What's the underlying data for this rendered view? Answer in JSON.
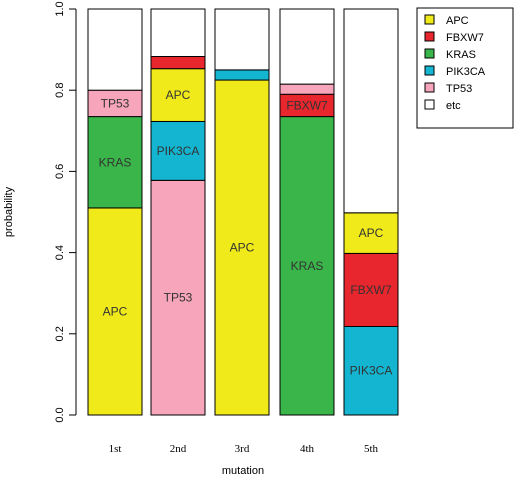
{
  "chart_data": {
    "type": "bar",
    "stacked": true,
    "xlabel": "mutation",
    "ylabel": "probability",
    "ylim": [
      0,
      1
    ],
    "yticks": [
      "0.0",
      "0.2",
      "0.4",
      "0.6",
      "0.8",
      "1.0"
    ],
    "categories": [
      "1st",
      "2nd",
      "3rd",
      "4th",
      "5th"
    ],
    "colors": {
      "APC": "#f0ea1a",
      "FBXW7": "#e8262e",
      "KRAS": "#3ab54a",
      "PIK3CA": "#14b5d0",
      "TP53": "#f6a5ba",
      "etc": "#ffffff"
    },
    "legend": {
      "position": "top-right",
      "entries": [
        "APC",
        "FBXW7",
        "KRAS",
        "PIK3CA",
        "TP53",
        "etc"
      ]
    },
    "bars": [
      {
        "category": "1st",
        "segments": [
          {
            "name": "APC",
            "value": 0.51,
            "label": "APC"
          },
          {
            "name": "KRAS",
            "value": 0.225,
            "label": "KRAS"
          },
          {
            "name": "TP53",
            "value": 0.065,
            "label": "TP53"
          },
          {
            "name": "etc",
            "value": 0.2,
            "label": ""
          }
        ]
      },
      {
        "category": "2nd",
        "segments": [
          {
            "name": "TP53",
            "value": 0.578,
            "label": "TP53"
          },
          {
            "name": "PIK3CA",
            "value": 0.145,
            "label": "PIK3CA"
          },
          {
            "name": "APC",
            "value": 0.13,
            "label": "APC"
          },
          {
            "name": "FBXW7",
            "value": 0.03,
            "label": ""
          },
          {
            "name": "etc",
            "value": 0.117,
            "label": ""
          }
        ]
      },
      {
        "category": "3rd",
        "segments": [
          {
            "name": "APC",
            "value": 0.825,
            "label": "APC"
          },
          {
            "name": "PIK3CA",
            "value": 0.025,
            "label": ""
          },
          {
            "name": "etc",
            "value": 0.15,
            "label": ""
          }
        ]
      },
      {
        "category": "4th",
        "segments": [
          {
            "name": "KRAS",
            "value": 0.735,
            "label": "KRAS"
          },
          {
            "name": "FBXW7",
            "value": 0.055,
            "label": "FBXW7"
          },
          {
            "name": "TP53",
            "value": 0.025,
            "label": ""
          },
          {
            "name": "etc",
            "value": 0.185,
            "label": ""
          }
        ]
      },
      {
        "category": "5th",
        "segments": [
          {
            "name": "PIK3CA",
            "value": 0.218,
            "label": "PIK3CA"
          },
          {
            "name": "FBXW7",
            "value": 0.18,
            "label": "FBXW7"
          },
          {
            "name": "APC",
            "value": 0.1,
            "label": "APC"
          },
          {
            "name": "etc",
            "value": 0.502,
            "label": ""
          }
        ]
      }
    ]
  }
}
